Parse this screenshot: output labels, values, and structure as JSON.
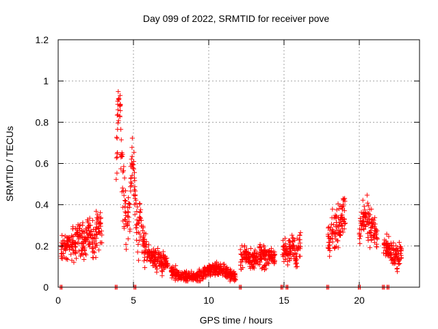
{
  "chart_data": {
    "type": "scatter",
    "title": "Day 099 of 2022, SRMTID for receiver pove",
    "xlabel": "GPS time / hours",
    "ylabel": "SRMTID / TECUs",
    "xlim": [
      0,
      24
    ],
    "ylim": [
      0,
      1.2
    ],
    "xticks": [
      0,
      5,
      10,
      15,
      20
    ],
    "xtick_labels": [
      "0",
      "5",
      "10",
      "15",
      "20"
    ],
    "yticks": [
      0,
      0.2,
      0.4,
      0.6,
      0.8,
      1.0,
      1.2
    ],
    "ytick_labels": [
      "0",
      "0.2",
      "0.4",
      "0.6",
      "0.8",
      "1",
      "1.2"
    ],
    "grid": true,
    "marker": "+",
    "series": [
      {
        "name": "SRMTID",
        "color": "#ff0000",
        "segments": [
          {
            "x": [
              0.2,
              0.5,
              0.8,
              1.1,
              1.4,
              1.7,
              2.0,
              2.3,
              2.6,
              2.9
            ],
            "y": [
              0.18,
              0.2,
              0.22,
              0.19,
              0.24,
              0.21,
              0.26,
              0.23,
              0.28,
              0.25
            ],
            "spread": [
              0.06,
              0.07,
              0.07,
              0.08,
              0.09,
              0.08,
              0.09,
              0.09,
              0.1,
              0.08
            ]
          },
          {
            "x": [
              3.85,
              3.95,
              4.05,
              4.15,
              4.3,
              4.45,
              4.6,
              4.75,
              4.9,
              5.05,
              5.2,
              5.35,
              5.5,
              5.7,
              5.9,
              6.1,
              6.4,
              6.7,
              7.0,
              7.3
            ],
            "y": [
              0.55,
              0.85,
              0.95,
              0.8,
              0.5,
              0.35,
              0.3,
              0.38,
              0.62,
              0.55,
              0.3,
              0.28,
              0.32,
              0.2,
              0.16,
              0.15,
              0.14,
              0.13,
              0.12,
              0.11
            ],
            "spread": [
              0.22,
              0.14,
              0.12,
              0.18,
              0.2,
              0.15,
              0.12,
              0.16,
              0.16,
              0.15,
              0.12,
              0.12,
              0.12,
              0.08,
              0.06,
              0.06,
              0.05,
              0.05,
              0.05,
              0.04
            ]
          },
          {
            "x": [
              7.5,
              8.0,
              8.5,
              9.0,
              9.5,
              10.0,
              10.5,
              11.0,
              11.4,
              11.8
            ],
            "y": [
              0.08,
              0.06,
              0.05,
              0.05,
              0.06,
              0.08,
              0.09,
              0.08,
              0.06,
              0.05
            ],
            "spread": [
              0.03,
              0.03,
              0.02,
              0.02,
              0.03,
              0.03,
              0.03,
              0.03,
              0.03,
              0.02
            ]
          },
          {
            "x": [
              12.1,
              12.5,
              12.9,
              13.3,
              13.7,
              14.1,
              14.4
            ],
            "y": [
              0.14,
              0.16,
              0.13,
              0.15,
              0.14,
              0.16,
              0.15
            ],
            "spread": [
              0.05,
              0.05,
              0.05,
              0.05,
              0.05,
              0.05,
              0.04
            ]
          },
          {
            "x": [
              14.9,
              15.2,
              15.5,
              15.8,
              16.1
            ],
            "y": [
              0.18,
              0.16,
              0.2,
              0.15,
              0.22
            ],
            "spread": [
              0.05,
              0.06,
              0.06,
              0.06,
              0.08
            ]
          },
          {
            "x": [
              17.9,
              18.2,
              18.5,
              18.8,
              19.1
            ],
            "y": [
              0.28,
              0.24,
              0.3,
              0.36,
              0.34
            ],
            "spread": [
              0.09,
              0.1,
              0.1,
              0.12,
              0.12
            ]
          },
          {
            "x": [
              20.0,
              20.3,
              20.6,
              20.9,
              21.2
            ],
            "y": [
              0.26,
              0.36,
              0.32,
              0.28,
              0.24
            ],
            "spread": [
              0.08,
              0.1,
              0.1,
              0.08,
              0.07
            ]
          },
          {
            "x": [
              21.6,
              21.9,
              22.2,
              22.5,
              22.8
            ],
            "y": [
              0.2,
              0.17,
              0.16,
              0.14,
              0.16
            ],
            "spread": [
              0.06,
              0.06,
              0.06,
              0.06,
              0.06
            ]
          }
        ],
        "zero_markers_x": [
          0.2,
          3.85,
          5.1,
          12.1,
          14.85,
          15.2,
          17.9,
          20.0,
          21.6,
          21.9
        ]
      }
    ]
  }
}
